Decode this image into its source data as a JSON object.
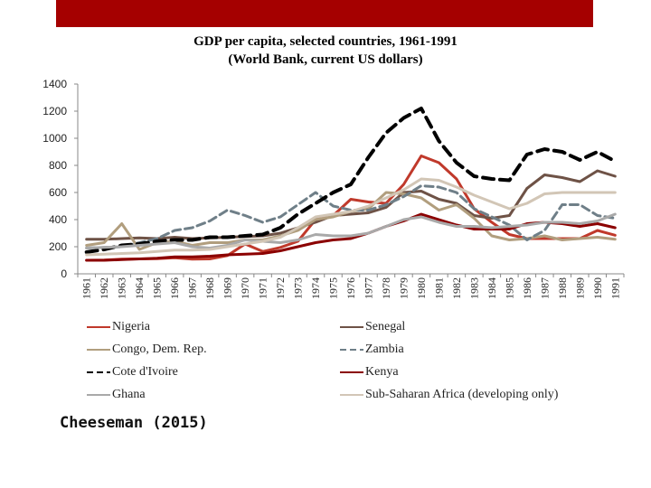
{
  "header": {
    "bar_color": "#a50000"
  },
  "chart_data": {
    "type": "line",
    "title": "GDP per capita, selected countries, 1961-1991",
    "subtitle": "(World Bank, current US dollars)",
    "xlabel": "",
    "ylabel": "",
    "ylim": [
      0,
      1400
    ],
    "yticks": [
      0,
      200,
      400,
      600,
      800,
      1000,
      1200,
      1400
    ],
    "grid": false,
    "legend": "bottom",
    "categories": [
      "1961",
      "1962",
      "1963",
      "1964",
      "1965",
      "1966",
      "1967",
      "1968",
      "1969",
      "1970",
      "1971",
      "1972",
      "1973",
      "1974",
      "1975",
      "1976",
      "1977",
      "1978",
      "1979",
      "1980",
      "1981",
      "1982",
      "1983",
      "1984",
      "1985",
      "1986",
      "1987",
      "1988",
      "1989",
      "1990",
      "1991"
    ],
    "series": [
      {
        "name": "Nigeria",
        "color": "#c0392b",
        "dash": "solid",
        "values": [
          100,
          102,
          108,
          110,
          112,
          118,
          108,
          110,
          135,
          220,
          165,
          195,
          240,
          400,
          430,
          550,
          530,
          520,
          660,
          870,
          820,
          700,
          480,
          380,
          290,
          260,
          260,
          260,
          260,
          320,
          285
        ]
      },
      {
        "name": "Senegal",
        "color": "#6e5246",
        "dash": "solid",
        "values": [
          255,
          255,
          260,
          265,
          260,
          270,
          260,
          265,
          270,
          275,
          280,
          300,
          340,
          380,
          430,
          440,
          450,
          490,
          600,
          610,
          550,
          520,
          430,
          410,
          430,
          630,
          730,
          710,
          680,
          760,
          720
        ]
      },
      {
        "name": "Congo, Dem. Rep.",
        "color": "#b19e7e",
        "dash": "solid",
        "values": [
          210,
          230,
          370,
          180,
          230,
          240,
          210,
          230,
          230,
          250,
          250,
          280,
          320,
          400,
          420,
          460,
          480,
          600,
          590,
          560,
          470,
          510,
          410,
          280,
          250,
          260,
          280,
          250,
          260,
          270,
          255
        ]
      },
      {
        "name": "Zambia",
        "color": "#6f7f88",
        "dash": "dash",
        "values": [
          190,
          195,
          200,
          230,
          260,
          320,
          340,
          390,
          470,
          430,
          380,
          420,
          510,
          600,
          500,
          470,
          470,
          510,
          570,
          650,
          640,
          600,
          480,
          420,
          360,
          250,
          320,
          510,
          510,
          430,
          410
        ]
      },
      {
        "name": "Cote d'Ivoire",
        "color": "#000000",
        "dash": "bigdash",
        "values": [
          160,
          180,
          210,
          220,
          240,
          250,
          250,
          270,
          270,
          280,
          290,
          340,
          440,
          520,
          600,
          660,
          860,
          1040,
          1150,
          1220,
          980,
          820,
          720,
          700,
          690,
          880,
          920,
          900,
          840,
          900,
          830
        ]
      },
      {
        "name": "Kenya",
        "color": "#8b0000",
        "dash": "solid",
        "values": [
          100,
          100,
          105,
          110,
          115,
          125,
          125,
          130,
          140,
          145,
          150,
          170,
          200,
          230,
          250,
          260,
          300,
          350,
          390,
          440,
          400,
          360,
          330,
          330,
          330,
          370,
          380,
          370,
          350,
          370,
          340
        ]
      },
      {
        "name": "Ghana",
        "color": "#a9a9a9",
        "dash": "solid",
        "values": [
          190,
          195,
          200,
          210,
          220,
          230,
          200,
          190,
          210,
          250,
          240,
          230,
          250,
          290,
          280,
          280,
          300,
          350,
          400,
          420,
          380,
          350,
          350,
          340,
          350,
          360,
          380,
          380,
          370,
          390,
          440
        ]
      },
      {
        "name": "Sub-Saharan Africa (developing only)",
        "color": "#d2c6b6",
        "dash": "solid",
        "values": [
          140,
          145,
          150,
          155,
          165,
          175,
          175,
          180,
          200,
          220,
          240,
          270,
          340,
          420,
          440,
          460,
          500,
          560,
          620,
          700,
          690,
          640,
          580,
          530,
          480,
          520,
          590,
          600,
          600,
          600,
          600
        ]
      }
    ]
  },
  "legend": {
    "left": [
      "Nigeria",
      "Congo, Dem. Rep.",
      "Cote d'Ivoire",
      "Ghana"
    ],
    "right": [
      "Senegal",
      "Zambia",
      "Kenya",
      "Sub-Saharan Africa (developing only)"
    ]
  },
  "citation": "Cheeseman (2015)"
}
